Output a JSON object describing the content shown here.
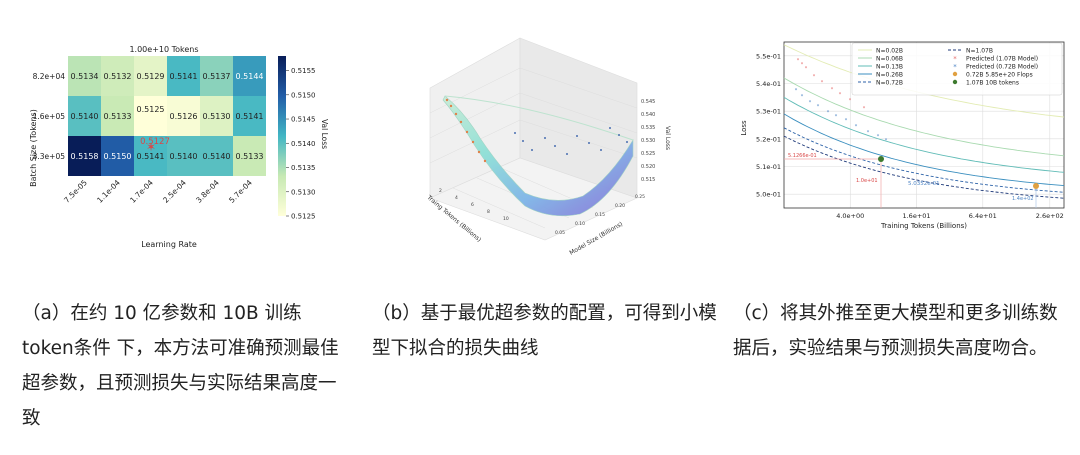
{
  "chart_data": [
    {
      "type": "heatmap",
      "title": "1.00e+10 Tokens",
      "xlabel": "Learning Rate",
      "ylabel": "Batch Size (Tokens)",
      "colorbar_label": "Val Loss",
      "colorbar_ticks": [
        "0.5155",
        "0.5150",
        "0.5145",
        "0.5140",
        "0.5135",
        "0.5130",
        "0.5125"
      ],
      "vmin": 0.5125,
      "vmax": 0.5158,
      "x": [
        "7.5e-05",
        "1.1e-04",
        "1.7e-04",
        "2.5e-04",
        "3.8e-04",
        "5.7e-04"
      ],
      "y": [
        "8.2e+04",
        "1.6e+05",
        "3.3e+05"
      ],
      "z": [
        [
          0.5134,
          0.5132,
          0.5129,
          0.5141,
          0.5137,
          0.5144
        ],
        [
          0.514,
          0.5133,
          0.5125,
          0.5126,
          0.513,
          0.5141
        ],
        [
          0.5158,
          0.515,
          0.5141,
          0.514,
          0.514,
          0.5133
        ]
      ],
      "cell_text": [
        [
          "0.5134",
          "0.5132",
          "0.5129",
          "0.5141",
          "0.5137",
          "0.5144"
        ],
        [
          "0.5140",
          "0.5133",
          "0.5125",
          "0.5126",
          "0.5130",
          "0.5141"
        ],
        [
          "0.5158",
          "0.5150",
          "0.5141",
          "0.5140",
          "0.5140",
          "0.5133"
        ]
      ],
      "predicted_label": "0.5127"
    },
    {
      "type": "surface3d",
      "xlabel": "Model Size (Billions)",
      "ylabel": "Traing Tokens (Billions)",
      "zlabel": "Val Loss",
      "z_ticks": [
        "0.545",
        "0.540",
        "0.535",
        "0.530",
        "0.525",
        "0.520",
        "0.515"
      ],
      "x_ticks": [
        "0.05",
        "0.10",
        "0.15",
        "0.20",
        "0.25"
      ],
      "y_ticks": [
        "2",
        "4",
        "6",
        "8",
        "10"
      ]
    },
    {
      "type": "line",
      "xlabel": "Training Tokens (Billions)",
      "ylabel": "Loss",
      "xscale": "log",
      "x_ticks": [
        "4.0e+00",
        "1.6e+01",
        "6.4e+01",
        "2.6e+02"
      ],
      "y_ticks": [
        "5.5e-01",
        "5.4e-01",
        "5.3e-01",
        "5.2e-01",
        "5.1e-01",
        "5.0e-01"
      ],
      "ylim": [
        0.495,
        0.555
      ],
      "grid": true,
      "legend_position": "upper right",
      "series": [
        {
          "name": "N=0.02B",
          "color": "#e3ecb4",
          "style": "solid"
        },
        {
          "name": "N=0.06B",
          "color": "#a9dab0",
          "style": "solid"
        },
        {
          "name": "N=0.13B",
          "color": "#61bcb7",
          "style": "solid"
        },
        {
          "name": "N=0.26B",
          "color": "#3b8fbf",
          "style": "solid"
        },
        {
          "name": "N=0.72B",
          "color": "#2c62a8",
          "style": "dashed"
        },
        {
          "name": "N=1.07B",
          "color": "#1f3a7a",
          "style": "dashed"
        }
      ],
      "markers": [
        {
          "name": "Predicted (1.07B Model)",
          "color": "#e56b6b",
          "symbol": "star"
        },
        {
          "name": "Predicted (0.72B Model)",
          "color": "#4f86c6",
          "symbol": "star"
        },
        {
          "name": "0.72B 5.85e+20 Flops",
          "color": "#e0a040",
          "symbol": "circle"
        },
        {
          "name": "1.07B 10B tokens",
          "color": "#3d7a2e",
          "symbol": "circle"
        }
      ],
      "annotations": [
        "5.1266e-01",
        "1.0e+01",
        "5.0352e-01",
        "1.4e+02"
      ]
    }
  ],
  "captions": {
    "a": "（a）在约 10 亿参数和 10B 训练 token条件 下，本方法可准确预测最佳超参数，且预测损失与实际结果高度一致",
    "b": "（b）基于最优超参数的配置，可得到小模型下拟合的损失曲线",
    "c": "（c）将其外推至更大模型和更多训练数据后，实验结果与预测损失高度吻合。"
  }
}
